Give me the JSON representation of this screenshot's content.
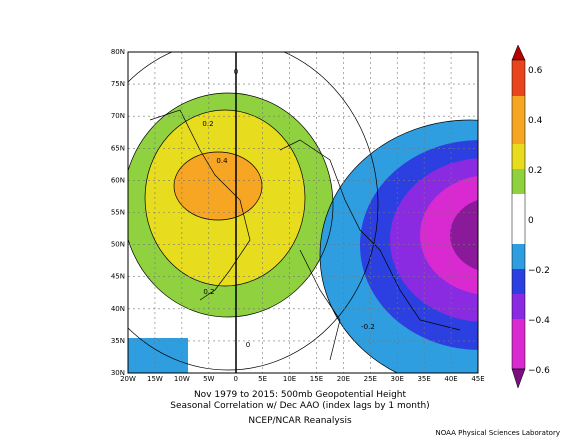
{
  "map": {
    "lat_labels": [
      "80N",
      "75N",
      "70N",
      "65N",
      "60N",
      "55N",
      "50N",
      "45N",
      "40N",
      "35N",
      "30N"
    ],
    "lon_labels": [
      "20W",
      "15W",
      "10W",
      "5W",
      "0",
      "5E",
      "10E",
      "15E",
      "20E",
      "25E",
      "30E",
      "35E",
      "40E",
      "45E"
    ],
    "contour_labels": [
      "0.2",
      "0.4",
      "0",
      "0.2",
      "0",
      "-0.2"
    ],
    "title_lines": [
      "Nov 1979 to 2015: 500mb Geopotential Height",
      "Seasonal Correlation w/ Dec AAO (index lags by 1 month)"
    ],
    "source": "NCEP/NCAR Reanalysis",
    "credit": "NOAA Physical Sciences Laboratory"
  },
  "colorbar": {
    "labels": [
      "0.6",
      "0.4",
      "0.2",
      "0",
      "−0.2",
      "−0.4",
      "−0.6"
    ]
  }
}
